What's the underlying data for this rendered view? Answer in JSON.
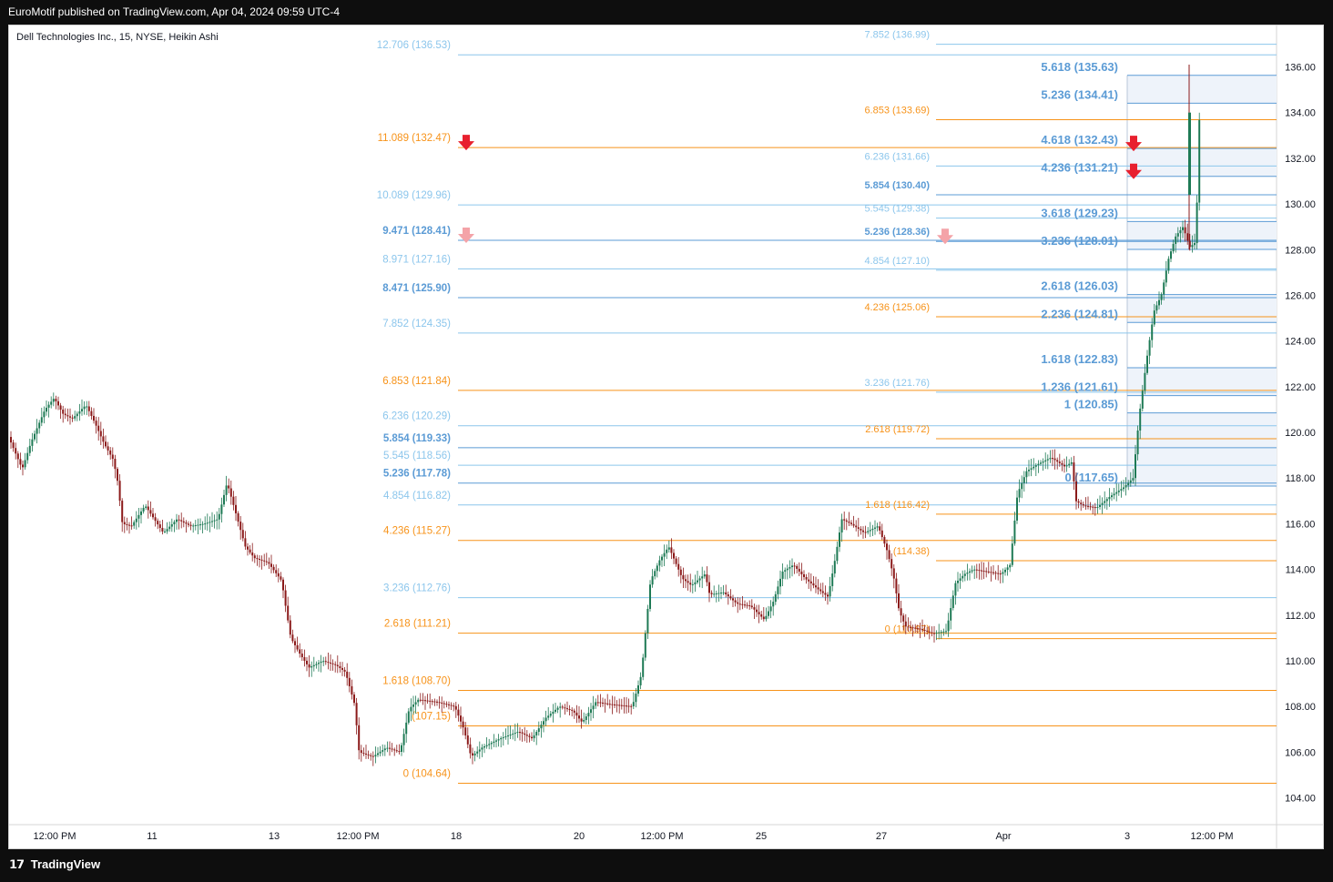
{
  "header": {
    "published": "EuroMotif published on TradingView.com, Apr 04, 2024 09:59 UTC-4"
  },
  "symbol": {
    "title": "Dell Technologies Inc., 15, NYSE, Heikin Ashi"
  },
  "footer": {
    "brand": "TradingView",
    "logo_icon": "tradingview-logo-icon"
  },
  "colors": {
    "orange": "#f7931a",
    "blue": "#8cc6ec",
    "steel": "#5b9bd5",
    "up": "#1e7a55",
    "down": "#8b1a1a",
    "arrow_red": "#e8202e",
    "arrow_pink": "#f4a3a8",
    "zone": "#eef3fa"
  },
  "chart_data": {
    "type": "candlestick",
    "title": "Dell Technologies Inc., 15, NYSE, Heikin Ashi",
    "y_axis": {
      "range": [
        103.0,
        137.5
      ],
      "ticks": [
        "104.00",
        "106.00",
        "108.00",
        "110.00",
        "112.00",
        "114.00",
        "116.00",
        "118.00",
        "120.00",
        "122.00",
        "124.00",
        "126.00",
        "128.00",
        "130.00",
        "132.00",
        "134.00",
        "136.00"
      ]
    },
    "x_axis": {
      "ticks": [
        "12:00 PM",
        "11",
        "13",
        "12:00 PM",
        "18",
        "20",
        "12:00 PM",
        "25",
        "27",
        "Apr",
        "3",
        "12:00 PM"
      ]
    },
    "fib_set_1": [
      {
        "label": "0 (104.64)",
        "value": 104.64,
        "color": "orange"
      },
      {
        "label": "(107.15)",
        "value": 107.15,
        "color": "orange"
      },
      {
        "label": "1.618 (108.70)",
        "value": 108.7,
        "color": "orange"
      },
      {
        "label": "2.618 (111.21)",
        "value": 111.21,
        "color": "orange"
      },
      {
        "label": "3.236 (112.76)",
        "value": 112.76,
        "color": "blue"
      },
      {
        "label": "4.236 (115.27)",
        "value": 115.27,
        "color": "orange"
      },
      {
        "label": "4.854 (116.82)",
        "value": 116.82,
        "color": "blue"
      },
      {
        "label": "5.236 (117.78)",
        "value": 117.78,
        "color": "steel"
      },
      {
        "label": "5.545 (118.56)",
        "value": 118.56,
        "color": "blue"
      },
      {
        "label": "5.854 (119.33)",
        "value": 119.33,
        "color": "steel"
      },
      {
        "label": "6.236 (120.29)",
        "value": 120.29,
        "color": "blue"
      },
      {
        "label": "6.853 (121.84)",
        "value": 121.84,
        "color": "orange"
      },
      {
        "label": "7.852 (124.35)",
        "value": 124.35,
        "color": "blue"
      },
      {
        "label": "8.471 (125.90)",
        "value": 125.9,
        "color": "steel"
      },
      {
        "label": "8.971 (127.16)",
        "value": 127.16,
        "color": "blue"
      },
      {
        "label": "9.471 (128.41)",
        "value": 128.41,
        "color": "steel"
      },
      {
        "label": "10.089 (129.96)",
        "value": 129.96,
        "color": "blue"
      },
      {
        "label": "11.089 (132.47)",
        "value": 132.47,
        "color": "orange"
      },
      {
        "label": "12.706 (136.53)",
        "value": 136.53,
        "color": "blue"
      }
    ],
    "fib_set_2": [
      {
        "label": "0 (110.97)",
        "value": 110.97,
        "color": "orange"
      },
      {
        "label": "(114.38)",
        "value": 114.38,
        "color": "orange"
      },
      {
        "label": "1.618 (116.42)",
        "value": 116.42,
        "color": "orange"
      },
      {
        "label": "2.618 (119.72)",
        "value": 119.72,
        "color": "orange"
      },
      {
        "label": "3.236 (121.76)",
        "value": 121.76,
        "color": "blue"
      },
      {
        "label": "4.236 (125.06)",
        "value": 125.06,
        "color": "orange"
      },
      {
        "label": "4.854 (127.10)",
        "value": 127.1,
        "color": "blue"
      },
      {
        "label": "5.236 (128.36)",
        "value": 128.36,
        "color": "steel"
      },
      {
        "label": "5.545 (129.38)",
        "value": 129.38,
        "color": "blue"
      },
      {
        "label": "5.854 (130.40)",
        "value": 130.4,
        "color": "steel"
      },
      {
        "label": "6.236 (131.66)",
        "value": 131.66,
        "color": "blue"
      },
      {
        "label": "6.853 (133.69)",
        "value": 133.69,
        "color": "orange"
      },
      {
        "label": "7.852 (136.99)",
        "value": 136.99,
        "color": "blue"
      }
    ],
    "fib_set_3": [
      {
        "label": "0 (117.65)",
        "value": 117.65
      },
      {
        "label": "1 (120.85)",
        "value": 120.85
      },
      {
        "label": "1.236 (121.61)",
        "value": 121.61
      },
      {
        "label": "1.618 (122.83)",
        "value": 122.83
      },
      {
        "label": "2.236 (124.81)",
        "value": 124.81
      },
      {
        "label": "2.618 (126.03)",
        "value": 126.03
      },
      {
        "label": "3.236 (128.01)",
        "value": 128.01
      },
      {
        "label": "3.618 (129.23)",
        "value": 129.23
      },
      {
        "label": "4.236 (131.21)",
        "value": 131.21
      },
      {
        "label": "4.618 (132.43)",
        "value": 132.43
      },
      {
        "label": "5.236 (134.41)",
        "value": 134.41
      },
      {
        "label": "5.618 (135.63)",
        "value": 135.63
      }
    ],
    "arrows": [
      {
        "price": 132.47,
        "set": 1,
        "kind": "red"
      },
      {
        "price": 128.41,
        "set": 1,
        "kind": "pink"
      },
      {
        "price": 128.36,
        "set": 2,
        "kind": "pink"
      },
      {
        "price": 132.43,
        "set": 3,
        "kind": "red"
      },
      {
        "price": 131.21,
        "set": 3,
        "kind": "red"
      }
    ],
    "price_path": [
      [
        0,
        119.8
      ],
      [
        15,
        118.4
      ],
      [
        25,
        119.6
      ],
      [
        40,
        121.0
      ],
      [
        50,
        121.5
      ],
      [
        60,
        120.8
      ],
      [
        70,
        120.6
      ],
      [
        85,
        121.2
      ],
      [
        95,
        120.4
      ],
      [
        105,
        119.5
      ],
      [
        115,
        118.8
      ],
      [
        120,
        117.8
      ],
      [
        125,
        116.0
      ],
      [
        135,
        115.9
      ],
      [
        150,
        116.8
      ],
      [
        160,
        116.2
      ],
      [
        170,
        115.6
      ],
      [
        185,
        116.2
      ],
      [
        200,
        115.9
      ],
      [
        215,
        116.0
      ],
      [
        230,
        116.2
      ],
      [
        240,
        117.8
      ],
      [
        250,
        116.4
      ],
      [
        260,
        115.0
      ],
      [
        270,
        114.5
      ],
      [
        285,
        114.3
      ],
      [
        300,
        113.5
      ],
      [
        305,
        112.2
      ],
      [
        310,
        111.0
      ],
      [
        320,
        110.3
      ],
      [
        330,
        109.7
      ],
      [
        345,
        110.0
      ],
      [
        360,
        109.8
      ],
      [
        370,
        109.5
      ],
      [
        380,
        108.1
      ],
      [
        385,
        106.0
      ],
      [
        400,
        105.8
      ],
      [
        415,
        106.2
      ],
      [
        430,
        106.0
      ],
      [
        440,
        107.9
      ],
      [
        450,
        108.3
      ],
      [
        470,
        108.2
      ],
      [
        490,
        108.0
      ],
      [
        500,
        107.0
      ],
      [
        508,
        105.8
      ],
      [
        520,
        106.2
      ],
      [
        540,
        106.6
      ],
      [
        560,
        106.9
      ],
      [
        575,
        106.6
      ],
      [
        590,
        107.5
      ],
      [
        605,
        108.0
      ],
      [
        620,
        107.8
      ],
      [
        630,
        107.3
      ],
      [
        645,
        108.2
      ],
      [
        660,
        108.1
      ],
      [
        685,
        108.0
      ],
      [
        695,
        109.4
      ],
      [
        705,
        113.5
      ],
      [
        715,
        114.4
      ],
      [
        725,
        115.0
      ],
      [
        740,
        113.6
      ],
      [
        750,
        113.3
      ],
      [
        765,
        113.8
      ],
      [
        770,
        112.9
      ],
      [
        785,
        113.0
      ],
      [
        800,
        112.5
      ],
      [
        815,
        112.4
      ],
      [
        830,
        111.8
      ],
      [
        840,
        112.6
      ],
      [
        850,
        113.9
      ],
      [
        862,
        114.2
      ],
      [
        875,
        113.6
      ],
      [
        890,
        113.1
      ],
      [
        900,
        112.8
      ],
      [
        908,
        114.5
      ],
      [
        915,
        116.2
      ],
      [
        925,
        116.0
      ],
      [
        940,
        115.6
      ],
      [
        955,
        115.9
      ],
      [
        965,
        114.8
      ],
      [
        972,
        113.7
      ],
      [
        978,
        112.2
      ],
      [
        985,
        111.5
      ],
      [
        1000,
        111.4
      ],
      [
        1015,
        111.2
      ],
      [
        1030,
        111.3
      ],
      [
        1040,
        113.4
      ],
      [
        1050,
        113.8
      ],
      [
        1060,
        114.0
      ],
      [
        1075,
        113.9
      ],
      [
        1090,
        113.8
      ],
      [
        1100,
        114.2
      ],
      [
        1108,
        117.3
      ],
      [
        1118,
        118.3
      ],
      [
        1130,
        118.6
      ],
      [
        1145,
        118.9
      ],
      [
        1160,
        118.5
      ],
      [
        1168,
        118.7
      ],
      [
        1172,
        117.0
      ],
      [
        1180,
        116.8
      ],
      [
        1195,
        116.7
      ],
      [
        1210,
        117.2
      ],
      [
        1225,
        117.6
      ],
      [
        1235,
        118.0
      ],
      [
        1242,
        120.8
      ],
      [
        1250,
        123.2
      ],
      [
        1258,
        125.3
      ],
      [
        1266,
        126.0
      ],
      [
        1274,
        127.6
      ],
      [
        1282,
        128.6
      ],
      [
        1290,
        129.0
      ],
      [
        1297,
        128.1
      ],
      [
        1303,
        128.3
      ],
      [
        1306,
        130.7
      ],
      [
        1308,
        134.0
      ]
    ]
  }
}
